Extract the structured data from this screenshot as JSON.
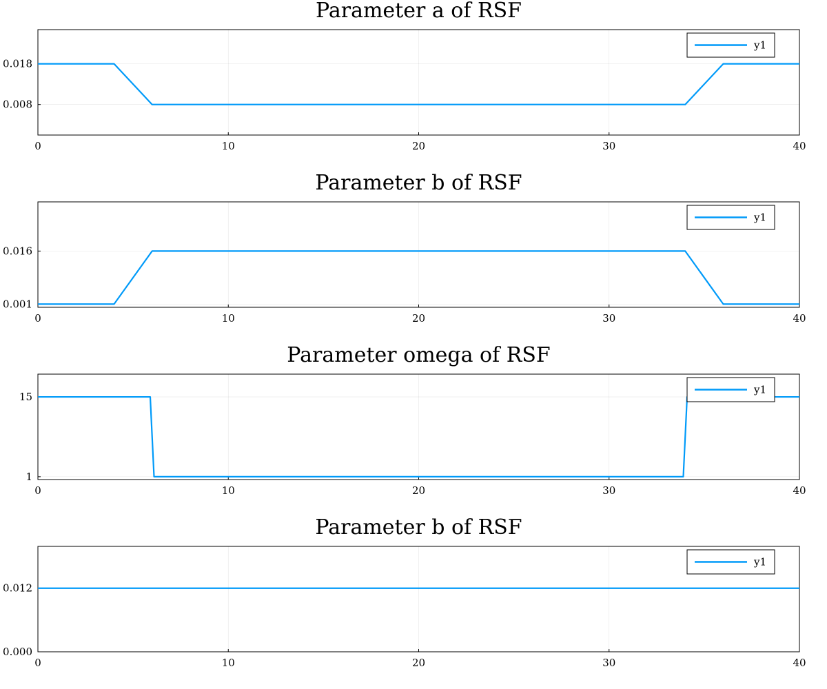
{
  "chart_data": [
    {
      "type": "line",
      "title": "Parameter a of RSF",
      "xlim": [
        0,
        40
      ],
      "ylim": [
        0.0005,
        0.0264
      ],
      "xticks": [
        "0",
        "10",
        "20",
        "30",
        "40"
      ],
      "yticks": [
        {
          "value": 0.018,
          "label": "0.018"
        },
        {
          "value": 0.008,
          "label": "0.008"
        }
      ],
      "grid": true,
      "legend_position": "top-right",
      "series": [
        {
          "name": "y1",
          "color": "#009AF9",
          "x": [
            0,
            4,
            6,
            34,
            36,
            40
          ],
          "y": [
            0.018,
            0.018,
            0.008,
            0.008,
            0.018,
            0.018
          ]
        }
      ]
    },
    {
      "type": "line",
      "title": "Parameter b of RSF",
      "xlim": [
        0,
        40
      ],
      "ylim": [
        0.0001,
        0.0299
      ],
      "xticks": [
        "0",
        "10",
        "20",
        "30",
        "40"
      ],
      "yticks": [
        {
          "value": 0.016,
          "label": "0.016"
        },
        {
          "value": 0.001,
          "label": "0.001"
        }
      ],
      "grid": true,
      "legend_position": "top-right",
      "series": [
        {
          "name": "y1",
          "color": "#009AF9",
          "x": [
            0,
            4,
            6,
            34,
            36,
            40
          ],
          "y": [
            0.001,
            0.001,
            0.016,
            0.016,
            0.001,
            0.001
          ]
        }
      ]
    },
    {
      "type": "line",
      "title": "Parameter omega of RSF",
      "xlim": [
        0,
        40
      ],
      "ylim": [
        0.5,
        19.0
      ],
      "xticks": [
        "0",
        "10",
        "20",
        "30",
        "40"
      ],
      "yticks": [
        {
          "value": 15,
          "label": "15"
        },
        {
          "value": 1,
          "label": "1"
        }
      ],
      "grid": true,
      "legend_position": "top-right",
      "series": [
        {
          "name": "y1",
          "color": "#009AF9",
          "x": [
            0,
            5.9,
            6.1,
            33.9,
            34.1,
            40
          ],
          "y": [
            15,
            15,
            1,
            1,
            15,
            15
          ]
        }
      ]
    },
    {
      "type": "line",
      "title": "Parameter b of RSF",
      "xlim": [
        0,
        40
      ],
      "ylim": [
        0.0,
        0.0199
      ],
      "xticks": [
        "0",
        "10",
        "20",
        "30",
        "40"
      ],
      "yticks": [
        {
          "value": 0.012,
          "label": "0.012"
        },
        {
          "value": 0.0,
          "label": "0.000"
        }
      ],
      "grid": true,
      "legend_position": "top-right",
      "series": [
        {
          "name": "y1",
          "color": "#009AF9",
          "x": [
            0,
            40
          ],
          "y": [
            0.012,
            0.012
          ]
        }
      ]
    }
  ]
}
